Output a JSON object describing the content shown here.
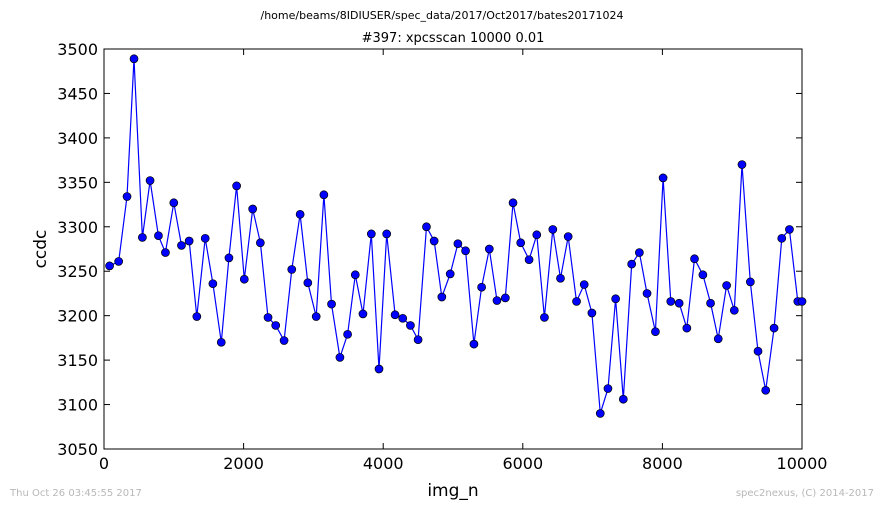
{
  "header": {
    "path": "/home/beams/8IDIUSER/spec_data/2017/Oct2017/bates20171024"
  },
  "footer": {
    "timestamp": "Thu Oct 26 03:45:55 2017",
    "credit": "spec2nexus, (C) 2014-2017"
  },
  "chart_data": {
    "type": "line",
    "title": "#397: xpcsscan 10000 0.01",
    "xlabel": "img_n",
    "ylabel": "ccdc",
    "xlim": [
      0,
      10000
    ],
    "ylim": [
      3050,
      3500
    ],
    "xticks": [
      0,
      2000,
      4000,
      6000,
      8000,
      10000
    ],
    "yticks": [
      3050,
      3100,
      3150,
      3200,
      3250,
      3300,
      3350,
      3400,
      3450,
      3500
    ],
    "grid": false,
    "marker": "circle",
    "color": "#0000ff",
    "series": [
      {
        "x": [
          80,
          210,
          330,
          430,
          550,
          660,
          780,
          880,
          1000,
          1110,
          1220,
          1330,
          1450,
          1560,
          1680,
          1790,
          1900,
          2010,
          2130,
          2240,
          2350,
          2460,
          2580,
          2690,
          2810,
          2920,
          3040,
          3150,
          3260,
          3380,
          3490,
          3600,
          3710,
          3830,
          3940,
          4050,
          4170,
          4280,
          4390,
          4500,
          4620,
          4730,
          4840,
          4960,
          5070,
          5180,
          5300,
          5410,
          5520,
          5630,
          5750,
          5860,
          5970,
          6090,
          6200,
          6310,
          6430,
          6540,
          6650,
          6770,
          6880,
          6990,
          7110,
          7220,
          7330,
          7440,
          7560,
          7670,
          7780,
          7900,
          8010,
          8120,
          8240,
          8350,
          8460,
          8580,
          8690,
          8800,
          8920,
          9030,
          9140,
          9260,
          9370,
          9480,
          9600,
          9710,
          9820,
          9940,
          10000
        ],
        "y": [
          3256,
          3261,
          3334,
          3489,
          3288,
          3352,
          3290,
          3271,
          3327,
          3279,
          3284,
          3199,
          3287,
          3236,
          3170,
          3265,
          3346,
          3241,
          3320,
          3282,
          3198,
          3189,
          3172,
          3252,
          3314,
          3237,
          3199,
          3336,
          3213,
          3153,
          3179,
          3246,
          3202,
          3292,
          3140,
          3292,
          3201,
          3197,
          3189,
          3173,
          3300,
          3284,
          3221,
          3247,
          3281,
          3273,
          3168,
          3232,
          3275,
          3217,
          3220,
          3327,
          3282,
          3263,
          3291,
          3198,
          3297,
          3242,
          3289,
          3216,
          3235,
          3203,
          3090,
          3118,
          3219,
          3106,
          3258,
          3271,
          3225,
          3182,
          3355,
          3216,
          3214,
          3186,
          3264,
          3246,
          3214,
          3174,
          3234,
          3206,
          3370,
          3238,
          3160,
          3116,
          3186,
          3287,
          3297,
          3216,
          3216
        ]
      }
    ]
  }
}
